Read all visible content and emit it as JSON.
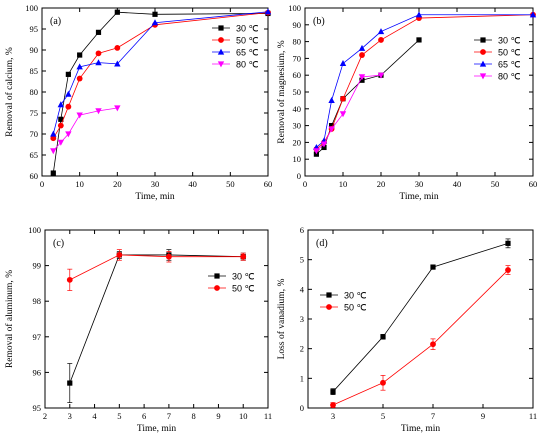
{
  "chart_data": [
    {
      "id": "a",
      "type": "line",
      "panel_label": "(a)",
      "xlabel": "Time, min",
      "ylabel": "Removal of calcium, %",
      "xlim": [
        0,
        60
      ],
      "ylim": [
        60,
        100
      ],
      "xticks": [
        0,
        10,
        20,
        30,
        40,
        50,
        60
      ],
      "yticks": [
        60,
        65,
        70,
        75,
        80,
        85,
        90,
        95,
        100
      ],
      "legend": "top-right",
      "series": [
        {
          "name": "30 ℃",
          "color": "#000000",
          "marker": "square",
          "x": [
            3,
            5,
            7,
            10,
            15,
            20,
            30,
            60
          ],
          "y": [
            60.7,
            73.5,
            84.2,
            88.8,
            94.2,
            99.0,
            98.5,
            98.7
          ]
        },
        {
          "name": "50 ℃",
          "color": "#ff0000",
          "marker": "circle",
          "x": [
            3,
            5,
            7,
            10,
            15,
            20,
            30,
            60
          ],
          "y": [
            69.0,
            72.0,
            76.5,
            83.2,
            89.2,
            90.5,
            96.0,
            98.9
          ]
        },
        {
          "name": "65 ℃",
          "color": "#0000ff",
          "marker": "triangle-up",
          "x": [
            3,
            5,
            7,
            10,
            15,
            20,
            30,
            60
          ],
          "y": [
            70.0,
            77.0,
            79.5,
            86.0,
            87.0,
            86.7,
            96.5,
            99.1
          ]
        },
        {
          "name": "80 ℃",
          "color": "#ff00ff",
          "marker": "triangle-down",
          "x": [
            3,
            5,
            7,
            10,
            15,
            20
          ],
          "y": [
            66.0,
            68.0,
            70.0,
            74.5,
            75.5,
            76.2
          ]
        }
      ]
    },
    {
      "id": "b",
      "type": "line",
      "panel_label": "(b)",
      "xlabel": "Time, min",
      "ylabel": "Removal of magnesium, %",
      "xlim": [
        0,
        60
      ],
      "ylim": [
        0,
        100
      ],
      "xticks": [
        0,
        10,
        20,
        30,
        40,
        50,
        60
      ],
      "yticks": [
        0,
        10,
        20,
        30,
        40,
        50,
        60,
        70,
        80,
        90,
        100
      ],
      "legend": "top-right",
      "series": [
        {
          "name": "30 ℃",
          "color": "#000000",
          "marker": "square",
          "x": [
            3,
            5,
            7,
            10,
            15,
            20,
            30
          ],
          "y": [
            13.0,
            17.0,
            30.0,
            46.0,
            57.0,
            60.0,
            81.0
          ]
        },
        {
          "name": "50 ℃",
          "color": "#ff0000",
          "marker": "circle",
          "x": [
            3,
            5,
            7,
            10,
            15,
            20,
            30,
            60
          ],
          "y": [
            16.0,
            20.0,
            28.0,
            46.0,
            72.0,
            81.0,
            94.0,
            96.0
          ]
        },
        {
          "name": "65 ℃",
          "color": "#0000ff",
          "marker": "triangle-up",
          "x": [
            3,
            5,
            7,
            10,
            15,
            20,
            30,
            60
          ],
          "y": [
            17.0,
            21.0,
            45.0,
            67.0,
            76.0,
            86.0,
            96.0,
            96.0
          ]
        },
        {
          "name": "80 ℃",
          "color": "#ff00ff",
          "marker": "triangle-down",
          "x": [
            3,
            5,
            7,
            10,
            15,
            20
          ],
          "y": [
            15.0,
            19.0,
            28.0,
            37.0,
            59.0,
            60.0
          ]
        }
      ]
    },
    {
      "id": "c",
      "type": "line",
      "panel_label": "(c)",
      "xlabel": "Time, min",
      "ylabel": "Removal of aluminum, %",
      "xlim": [
        2,
        11
      ],
      "ylim": [
        95,
        100
      ],
      "xticks": [
        2,
        3,
        4,
        5,
        6,
        7,
        8,
        9,
        10,
        11
      ],
      "yticks": [
        95,
        96,
        97,
        98,
        99,
        100
      ],
      "legend": "middle-right",
      "series": [
        {
          "name": "30 ℃",
          "color": "#000000",
          "marker": "square",
          "x": [
            3,
            5,
            7,
            10
          ],
          "y": [
            95.7,
            99.3,
            99.3,
            99.25
          ],
          "err": [
            0.55,
            0.1,
            0.15,
            0.1
          ]
        },
        {
          "name": "50 ℃",
          "color": "#ff0000",
          "marker": "circle",
          "x": [
            3,
            5,
            7,
            10
          ],
          "y": [
            98.6,
            99.3,
            99.25,
            99.25
          ],
          "err": [
            0.3,
            0.15,
            0.15,
            0.1
          ]
        }
      ]
    },
    {
      "id": "d",
      "type": "line",
      "panel_label": "(d)",
      "xlabel": "Time, min",
      "ylabel": "Loss of vanadium, %",
      "xlim": [
        2,
        11
      ],
      "ylim": [
        0,
        6
      ],
      "xticks": [
        3,
        5,
        7,
        9,
        11
      ],
      "yticks": [
        0,
        1,
        2,
        3,
        4,
        5,
        6
      ],
      "legend": "upper-left",
      "series": [
        {
          "name": "30 ℃",
          "color": "#000000",
          "marker": "square",
          "x": [
            3,
            5,
            7,
            10
          ],
          "y": [
            0.55,
            2.4,
            4.75,
            5.55
          ],
          "err": [
            0.1,
            0.08,
            0.05,
            0.15
          ]
        },
        {
          "name": "50 ℃",
          "color": "#ff0000",
          "marker": "circle",
          "x": [
            3,
            5,
            7,
            10
          ],
          "y": [
            0.1,
            0.85,
            2.15,
            4.65
          ],
          "err": [
            0.08,
            0.25,
            0.18,
            0.15
          ]
        }
      ]
    }
  ]
}
